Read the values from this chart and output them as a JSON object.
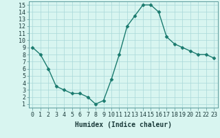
{
  "x": [
    0,
    1,
    2,
    3,
    4,
    5,
    6,
    7,
    8,
    9,
    10,
    11,
    12,
    13,
    14,
    15,
    16,
    17,
    18,
    19,
    20,
    21,
    22,
    23
  ],
  "y": [
    9,
    8,
    6,
    3.5,
    3,
    2.5,
    2.5,
    2,
    1,
    1.5,
    4.5,
    8,
    12,
    13.5,
    15,
    15,
    14,
    10.5,
    9.5,
    9,
    8.5,
    8,
    8,
    7.5
  ],
  "line_color": "#1a7a6e",
  "marker": "D",
  "markersize": 2.5,
  "linewidth": 1.0,
  "bg_color": "#d8f5f0",
  "grid_color": "#a8d8d8",
  "xlabel": "Humidex (Indice chaleur)",
  "xlabel_fontsize": 7,
  "tick_fontsize": 6,
  "ylim": [
    0.5,
    15.5
  ],
  "xlim": [
    -0.5,
    23.5
  ]
}
